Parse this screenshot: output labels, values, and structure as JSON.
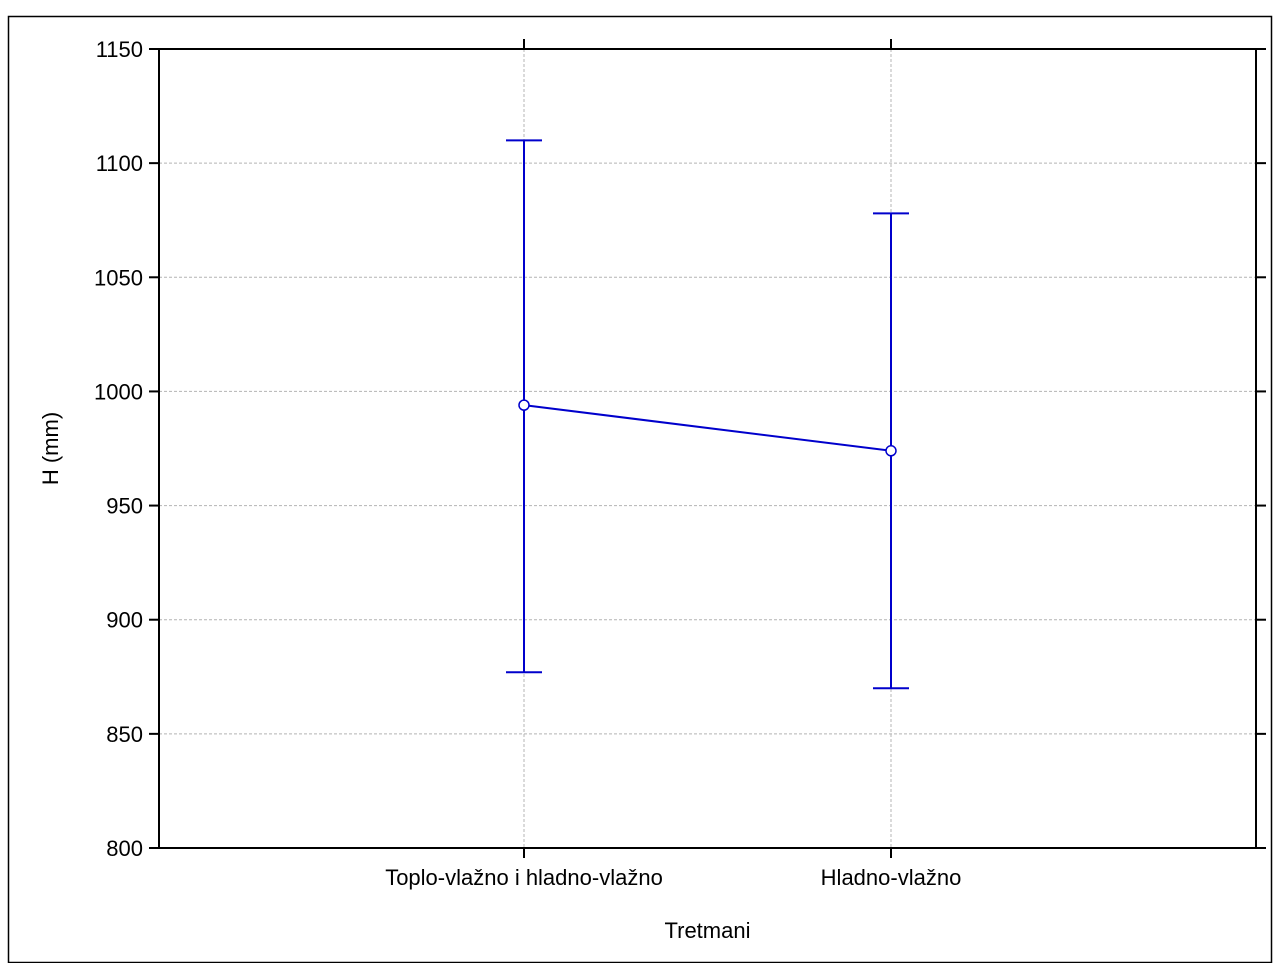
{
  "chart_data": {
    "type": "line",
    "title": "",
    "xlabel": "Tretmani",
    "ylabel": "H (mm)",
    "ylim": [
      800,
      1150
    ],
    "yticks": [
      800,
      850,
      900,
      950,
      1000,
      1050,
      1100,
      1150
    ],
    "categories": [
      "Toplo-vlažno i hladno-vlažno",
      "Hladno-vlažno"
    ],
    "series": [
      {
        "values": [
          994,
          974
        ],
        "error_lower": [
          877,
          870
        ],
        "error_upper": [
          1110,
          1078
        ],
        "color": "#0000cc"
      }
    ],
    "grid": true,
    "grid_color": "#b4b4b4"
  }
}
